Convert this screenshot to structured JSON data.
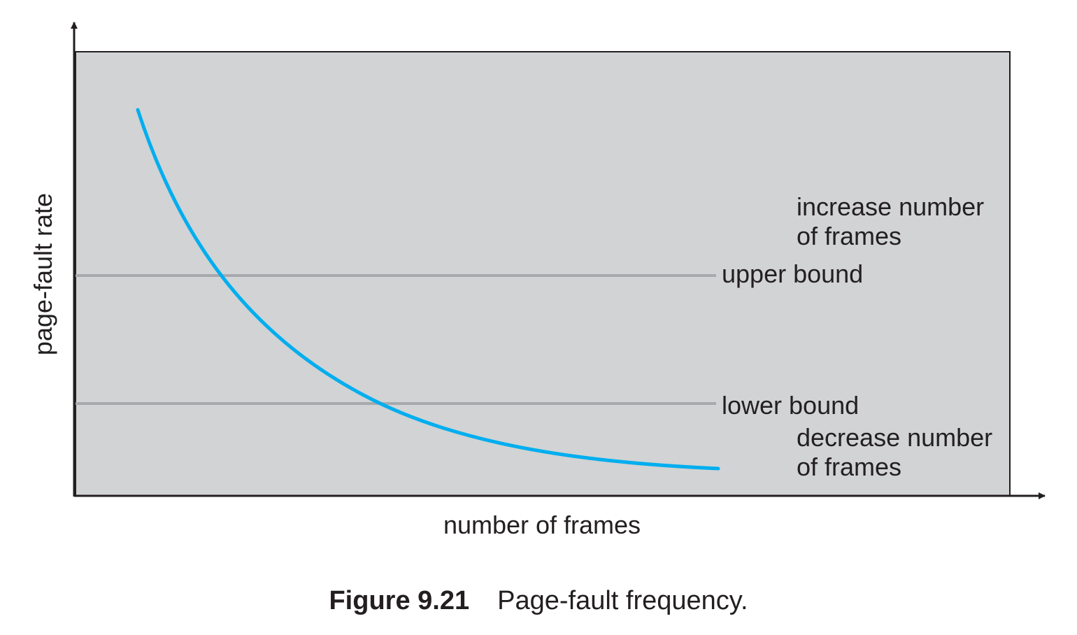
{
  "y_axis_label": "page-fault rate",
  "x_axis_label": "number of frames",
  "bounds": {
    "upper_label": "upper bound",
    "lower_label": "lower bound"
  },
  "regions": {
    "above_upper": [
      "increase number",
      "of frames"
    ],
    "below_lower": [
      "decrease number",
      "of frames"
    ]
  },
  "caption": {
    "number": "Figure 9.21",
    "text": "Page-fault frequency."
  },
  "colors": {
    "plot_background": "#d1d3d4",
    "curve": "#00aeef",
    "bound_lines": "#a7a9ac",
    "axes": "#231f20",
    "text": "#231f20"
  }
}
